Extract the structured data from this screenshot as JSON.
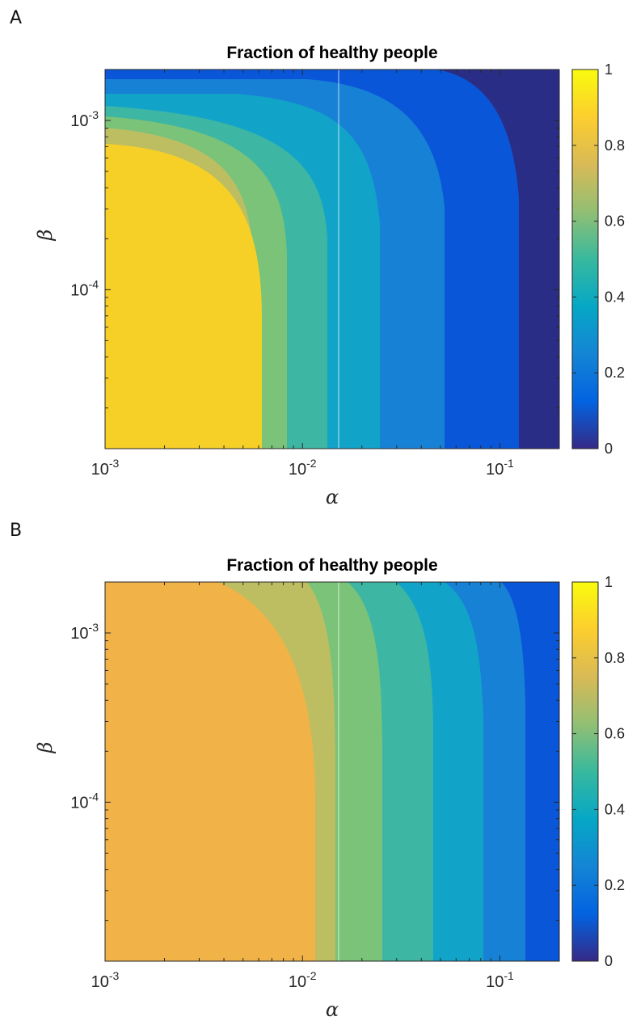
{
  "figure": {
    "panels": [
      {
        "letter": "A",
        "title": "Fraction of healthy people"
      },
      {
        "letter": "B",
        "title": "Fraction of healthy people"
      }
    ]
  },
  "colors": {
    "levels": [
      "#2a2d86",
      "#0a56d9",
      "#1782d5",
      "#12a4c8",
      "#3db6a3",
      "#7ac378",
      "#bdbe62",
      "#f1b347",
      "#f6d026"
    ],
    "colorbar": [
      "#352a87",
      "#0363e1",
      "#1485d4",
      "#06a7c6",
      "#38b99e",
      "#92bf73",
      "#d9ba56",
      "#fcce2e",
      "#f9fb0e"
    ]
  },
  "chart_data": [
    {
      "type": "heatmap",
      "title": "Fraction of healthy people",
      "xlabel": "α",
      "ylabel": "β",
      "x_scale": "log",
      "y_scale": "log",
      "xlim": [
        0.001,
        0.2
      ],
      "ylim": [
        1.15e-05,
        0.002
      ],
      "x_ticks": [
        {
          "value": 0.001,
          "base": "10",
          "exp": "-3"
        },
        {
          "value": 0.01,
          "base": "10",
          "exp": "-2"
        },
        {
          "value": 0.1,
          "base": "10",
          "exp": "-1"
        }
      ],
      "y_ticks": [
        {
          "value": 0.0001,
          "base": "10",
          "exp": "-4"
        },
        {
          "value": 0.001,
          "base": "10",
          "exp": "-3"
        }
      ],
      "colorbar": {
        "range": [
          0,
          1
        ],
        "ticks": [
          "0",
          "0.2",
          "0.4",
          "0.6",
          "0.8",
          "1"
        ]
      },
      "levels": [
        0.1,
        0.2,
        0.3,
        0.4,
        0.5,
        0.6,
        0.7,
        0.8,
        0.9
      ],
      "contour_alpha_at_low_beta": [
        0.12,
        0.076,
        0.052,
        0.035,
        0.023,
        0.0135,
        0.0063
      ],
      "contour_beta_at_low_alpha": [
        0.0016,
        0.00126,
        0.00111,
        0.00101,
        0.00093,
        0.00085,
        0.00073
      ]
    },
    {
      "type": "heatmap",
      "title": "Fraction of healthy people",
      "xlabel": "α",
      "ylabel": "β",
      "x_scale": "log",
      "y_scale": "log",
      "xlim": [
        0.001,
        0.2
      ],
      "ylim": [
        1.15e-05,
        0.002
      ],
      "x_ticks": [
        {
          "value": 0.001,
          "base": "10",
          "exp": "-3"
        },
        {
          "value": 0.01,
          "base": "10",
          "exp": "-2"
        },
        {
          "value": 0.1,
          "base": "10",
          "exp": "-1"
        }
      ],
      "y_ticks": [
        {
          "value": 0.0001,
          "base": "10",
          "exp": "-4"
        },
        {
          "value": 0.001,
          "base": "10",
          "exp": "-3"
        }
      ],
      "colorbar": {
        "range": [
          0,
          1
        ],
        "ticks": [
          "0",
          "0.2",
          "0.4",
          "0.6",
          "0.8",
          "1"
        ]
      },
      "levels": [
        0.2,
        0.3,
        0.4,
        0.5,
        0.6,
        0.7,
        0.8,
        0.9
      ],
      "contour_alpha_at_low_beta": [
        0.145,
        0.095,
        0.063,
        0.042,
        0.025,
        0.0115
      ],
      "contour_alpha_at_top": [
        0.096,
        0.055,
        0.035,
        0.022,
        0.0135,
        0.0075
      ]
    }
  ]
}
